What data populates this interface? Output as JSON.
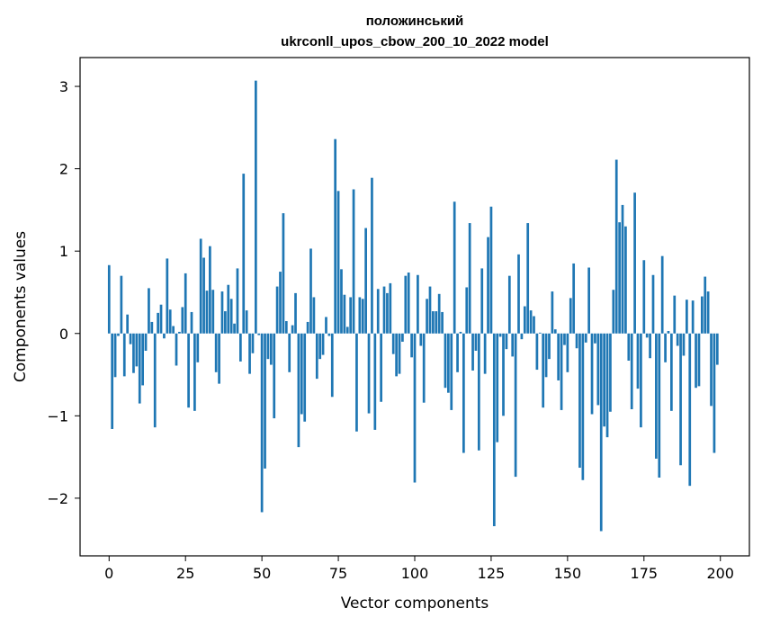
{
  "chart_data": {
    "type": "bar",
    "title": "положинський",
    "subtitle": "ukrconll_upos_cbow_200_10_2022 model",
    "xlabel": "Vector components",
    "ylabel": "Components values",
    "xlim": [
      -9.5,
      209.5
    ],
    "ylim": [
      -2.7,
      3.35
    ],
    "xticks": [
      0,
      25,
      50,
      75,
      100,
      125,
      150,
      175,
      200
    ],
    "yticks": [
      -2,
      -1,
      0,
      1,
      2,
      3
    ],
    "ytick_labels": [
      "−2",
      "−1",
      "0",
      "1",
      "2",
      "3"
    ],
    "grid": false,
    "bar_color": "#1f77b4",
    "values": [
      0.83,
      -1.16,
      -0.53,
      -0.03,
      0.7,
      -0.52,
      0.23,
      -0.13,
      -0.48,
      -0.4,
      -0.85,
      -0.63,
      -0.21,
      0.55,
      0.14,
      -1.14,
      0.25,
      0.35,
      -0.06,
      0.91,
      0.29,
      0.09,
      -0.39,
      0.02,
      0.32,
      0.73,
      -0.9,
      0.26,
      -0.94,
      -0.35,
      1.15,
      0.92,
      0.52,
      1.06,
      0.53,
      -0.47,
      -0.61,
      0.51,
      0.27,
      0.59,
      0.42,
      0.12,
      0.79,
      -0.34,
      1.94,
      0.28,
      -0.49,
      -0.24,
      3.07,
      -0.02,
      -2.17,
      -1.64,
      -0.31,
      -0.38,
      -1.03,
      0.57,
      0.75,
      1.46,
      0.15,
      -0.47,
      0.1,
      0.49,
      -1.38,
      -0.98,
      -1.07,
      0.14,
      1.03,
      0.44,
      -0.55,
      -0.31,
      -0.26,
      0.2,
      -0.03,
      -0.77,
      2.36,
      1.73,
      0.78,
      0.47,
      0.08,
      0.44,
      1.75,
      -1.19,
      0.44,
      0.42,
      1.28,
      -0.97,
      1.89,
      -1.17,
      0.54,
      -0.83,
      0.57,
      0.49,
      0.61,
      -0.25,
      -0.52,
      -0.49,
      -0.1,
      0.7,
      0.74,
      -0.29,
      -1.81,
      0.71,
      -0.15,
      -0.84,
      0.42,
      0.57,
      0.27,
      0.27,
      0.48,
      0.26,
      -0.66,
      -0.72,
      -0.93,
      1.6,
      -0.47,
      0.02,
      -1.45,
      0.56,
      1.34,
      -0.45,
      -0.21,
      -1.42,
      0.79,
      -0.49,
      1.17,
      1.54,
      -2.34,
      -1.32,
      -0.04,
      -1.0,
      -0.19,
      0.7,
      -0.28,
      -1.74,
      0.96,
      -0.07,
      0.33,
      1.34,
      0.28,
      0.21,
      -0.44,
      0.01,
      -0.9,
      -0.53,
      -0.31,
      0.51,
      0.05,
      -0.57,
      -0.93,
      -0.14,
      -0.47,
      0.43,
      0.85,
      -0.18,
      -1.63,
      -1.78,
      -0.11,
      0.8,
      -0.98,
      -0.12,
      -0.87,
      -2.4,
      -1.13,
      -1.26,
      -0.95,
      0.53,
      2.11,
      1.35,
      1.56,
      1.3,
      -0.33,
      -0.92,
      1.71,
      -0.67,
      -1.14,
      0.89,
      -0.05,
      -0.3,
      0.71,
      -1.52,
      -1.75,
      0.94,
      -0.35,
      0.03,
      -0.94,
      0.46,
      -0.15,
      -1.6,
      -0.27,
      0.41,
      -1.85,
      0.4,
      -0.66,
      -0.64,
      0.45,
      0.69,
      0.51,
      -0.88,
      -1.45,
      -0.38
    ]
  }
}
